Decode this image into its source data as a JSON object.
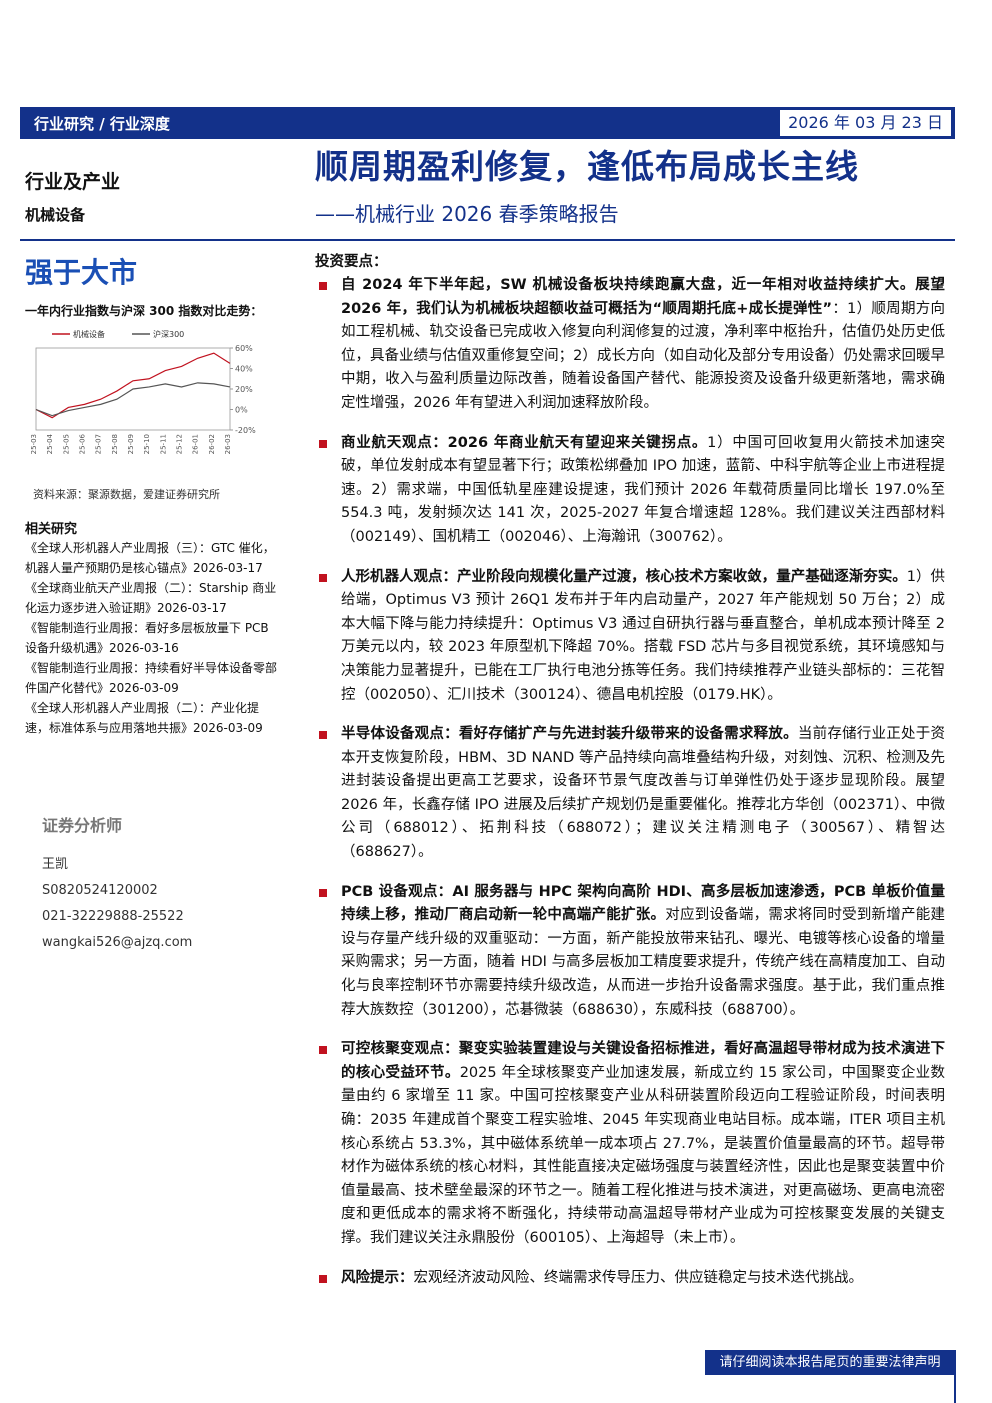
{
  "header": {
    "category": "行业研究 / 行业深度",
    "date": "2026 年 03 月 23 日",
    "industry": "行业及产业",
    "sub_industry": "机械设备",
    "rating": "强于大市",
    "title": "顺周期盈利修复，逢低布局成长主线",
    "subtitle": "——机械行业 2026 春季策略报告"
  },
  "chart_data": {
    "type": "line",
    "title": "一年内行业指数与沪深 300 指数对比走势：",
    "source": "资料来源：聚源数据，爱建证券研究所",
    "categories": [
      "25-03",
      "25-04",
      "25-05",
      "25-06",
      "25-07",
      "25-08",
      "25-09",
      "25-10",
      "25-11",
      "25-12",
      "26-01",
      "26-02",
      "26-03"
    ],
    "series": [
      {
        "name": "机械设备",
        "color": "#c1121f",
        "values": [
          0,
          -8,
          2,
          5,
          10,
          18,
          28,
          30,
          38,
          42,
          50,
          55,
          45
        ]
      },
      {
        "name": "沪深300",
        "color": "#555555",
        "values": [
          0,
          -6,
          -1,
          2,
          5,
          10,
          20,
          22,
          25,
          22,
          26,
          25,
          22
        ]
      }
    ],
    "ylim": [
      -20,
      60
    ],
    "yticks": [
      {
        "value": -20,
        "label": "-20%"
      },
      {
        "value": 0,
        "label": "0%"
      },
      {
        "value": 20,
        "label": "20%"
      },
      {
        "value": 40,
        "label": "40%"
      },
      {
        "value": 60,
        "label": "60%"
      }
    ]
  },
  "sidebar": {
    "related_title": "相关研究",
    "related": [
      "《全球人形机器人产业周报（三）：GTC 催化，机器人量产预期仍是核心锚点》2026-03-17",
      "《全球商业航天产业周报（二）：Starship 商业化运力逐步进入验证期》2026-03-17",
      "《智能制造行业周报：看好多层板放量下 PCB 设备升级机遇》2026-03-16",
      "《智能制造行业周报：持续看好半导体设备零部件国产化替代》2026-03-09",
      "《全球人形机器人产业周报（二）：产业化提速，标准体系与应用落地共振》2026-03-09"
    ],
    "analyst_title": "证券分析师",
    "analyst": [
      "王凯",
      "S0820524120002",
      "021-32229888-25522",
      "wangkai526@ajzq.com"
    ]
  },
  "key_points": {
    "title": "投资要点：",
    "points": [
      {
        "bold": "自 2024 年下半年起，SW 机械设备板块持续跑赢大盘，近一年相对收益持续扩大。展望 2026 年，我们认为机械板块超额收益可概括为“顺周期托底+成长提弹性”",
        "text": "：1）顺周期方向如工程机械、轨交设备已完成收入修复向利润修复的过渡，净利率中枢抬升，估值仍处历史低位，具备业绩与估值双重修复空间；2）成长方向（如自动化及部分专用设备）仍处需求回暖早中期，收入与盈利质量边际改善，随着设备国产替代、能源投资及设备升级更新落地，需求确定性增强，2026 年有望进入利润加速释放阶段。"
      },
      {
        "bold": "商业航天观点：2026 年商业航天有望迎来关键拐点。",
        "text": "1）中国可回收复用火箭技术加速突破，单位发射成本有望显著下行；政策松绑叠加 IPO 加速，蓝箭、中科宇航等企业上市进程提速。2）需求端，中国低轨星座建设提速，我们预计 2026 年载荷质量同比增长 197.0%至 554.3 吨，发射频次达 141 次，2025-2027 年复合增速超 128%。我们建议关注西部材料（002149）、国机精工（002046）、上海瀚讯（300762）。"
      },
      {
        "bold": "人形机器人观点：产业阶段向规模化量产过渡，核心技术方案收敛，量产基础逐渐夯实。",
        "text": "1）供给端，Optimus V3 预计 26Q1 发布并于年内启动量产，2027 年产能规划 50 万台；2）成本大幅下降与能力持续提升：Optimus V3 通过自研执行器与垂直整合，单机成本预计降至 2 万美元以内，较 2023 年原型机下降超 70%。搭载 FSD 芯片与多目视觉系统，其环境感知与决策能力显著提升，已能在工厂执行电池分拣等任务。我们持续推荐产业链头部标的：三花智控（002050）、汇川技术（300124）、德昌电机控股（0179.HK）。"
      },
      {
        "bold": "半导体设备观点：看好存储扩产与先进封装升级带来的设备需求释放。",
        "text": "当前存储行业正处于资本开支恢复阶段，HBM、3D NAND 等产品持续向高堆叠结构升级，对刻蚀、沉积、检测及先进封装设备提出更高工艺要求，设备环节景气度改善与订单弹性仍处于逐步显现阶段。展望 2026 年，长鑫存储 IPO 进展及后续扩产规划仍是重要催化。推荐北方华创（002371）、中微公司（688012）、拓荆科技（688072）；建议关注精测电子（300567）、精智达（688627）。"
      },
      {
        "bold": "PCB 设备观点：AI 服务器与 HPC 架构向高阶 HDI、高多层板加速渗透，PCB 单板价值量持续上移，推动厂商启动新一轮中高端产能扩张。",
        "text": "对应到设备端，需求将同时受到新增产能建设与存量产线升级的双重驱动：一方面，新产能投放带来钻孔、曝光、电镀等核心设备的增量采购需求；另一方面，随着 HDI 与高多层板加工精度要求提升，传统产线在高精度加工、自动化与良率控制环节亦需要持续升级改造，从而进一步抬升设备需求强度。基于此，我们重点推荐大族数控（301200），芯碁微装（688630），东威科技（688700）。"
      },
      {
        "bold": "可控核聚变观点：聚变实验装置建设与关键设备招标推进，看好高温超导带材成为技术演进下的核心受益环节。",
        "text": "2025 年全球核聚变产业加速发展，新成立约 15 家公司，中国聚变企业数量由约 6 家增至 11 家。中国可控核聚变产业从科研装置阶段迈向工程验证阶段，时间表明确：2035 年建成首个聚变工程实验堆、2045 年实现商业电站目标。成本端，ITER 项目主机核心系统占 53.3%，其中磁体系统单一成本项占 27.7%，是装置价值量最高的环节。超导带材作为磁体系统的核心材料，其性能直接决定磁场强度与装置经济性，因此也是聚变装置中价值量最高、技术壁垒最深的环节之一。随着工程化推进与技术演进，对更高磁场、更高电流密度和更低成本的需求将不断强化，持续带动高温超导带材产业成为可控核聚变发展的关键支撑。我们建议关注永鼎股份（600105）、上海超导（未上市）。"
      },
      {
        "bold": "风险提示：",
        "text": "宏观经济波动风险、终端需求传导压力、供应链稳定与技术迭代挑战。"
      }
    ]
  },
  "footer": {
    "notice": "请仔细阅读本报告尾页的重要法律声明"
  }
}
